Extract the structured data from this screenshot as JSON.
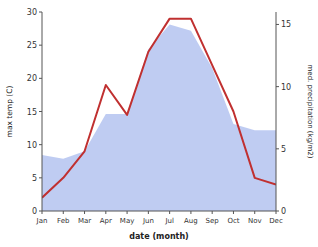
{
  "chart_data": {
    "type": "line",
    "categories": [
      "Jan",
      "Feb",
      "Mar",
      "Apr",
      "May",
      "Jun",
      "Jul",
      "Aug",
      "Sep",
      "Oct",
      "Nov",
      "Dec"
    ],
    "x_label": "date (month)",
    "y_label": "max temp (C)",
    "y2_label": "med. precipitation (kg/m2)",
    "series": [
      {
        "type": "area",
        "axis": "y2",
        "color": "#aabbee",
        "values": [
          4.5,
          4.2,
          4.8,
          7.8,
          7.8,
          13.0,
          15.0,
          14.5,
          11.5,
          7.0,
          6.5,
          6.5
        ]
      },
      {
        "type": "line",
        "color": "#c03030",
        "values": [
          2.0,
          5.0,
          9.0,
          19.0,
          14.5,
          24.0,
          29.0,
          29.0,
          22.0,
          15.0,
          5.0,
          4.0
        ]
      }
    ],
    "ylim": [
      0,
      30
    ],
    "yticks": [
      0,
      5,
      10,
      15,
      20,
      25,
      30
    ],
    "y2lim": [
      0,
      16
    ],
    "y2ticks": [
      0,
      5,
      10,
      15
    ],
    "grid": false
  }
}
